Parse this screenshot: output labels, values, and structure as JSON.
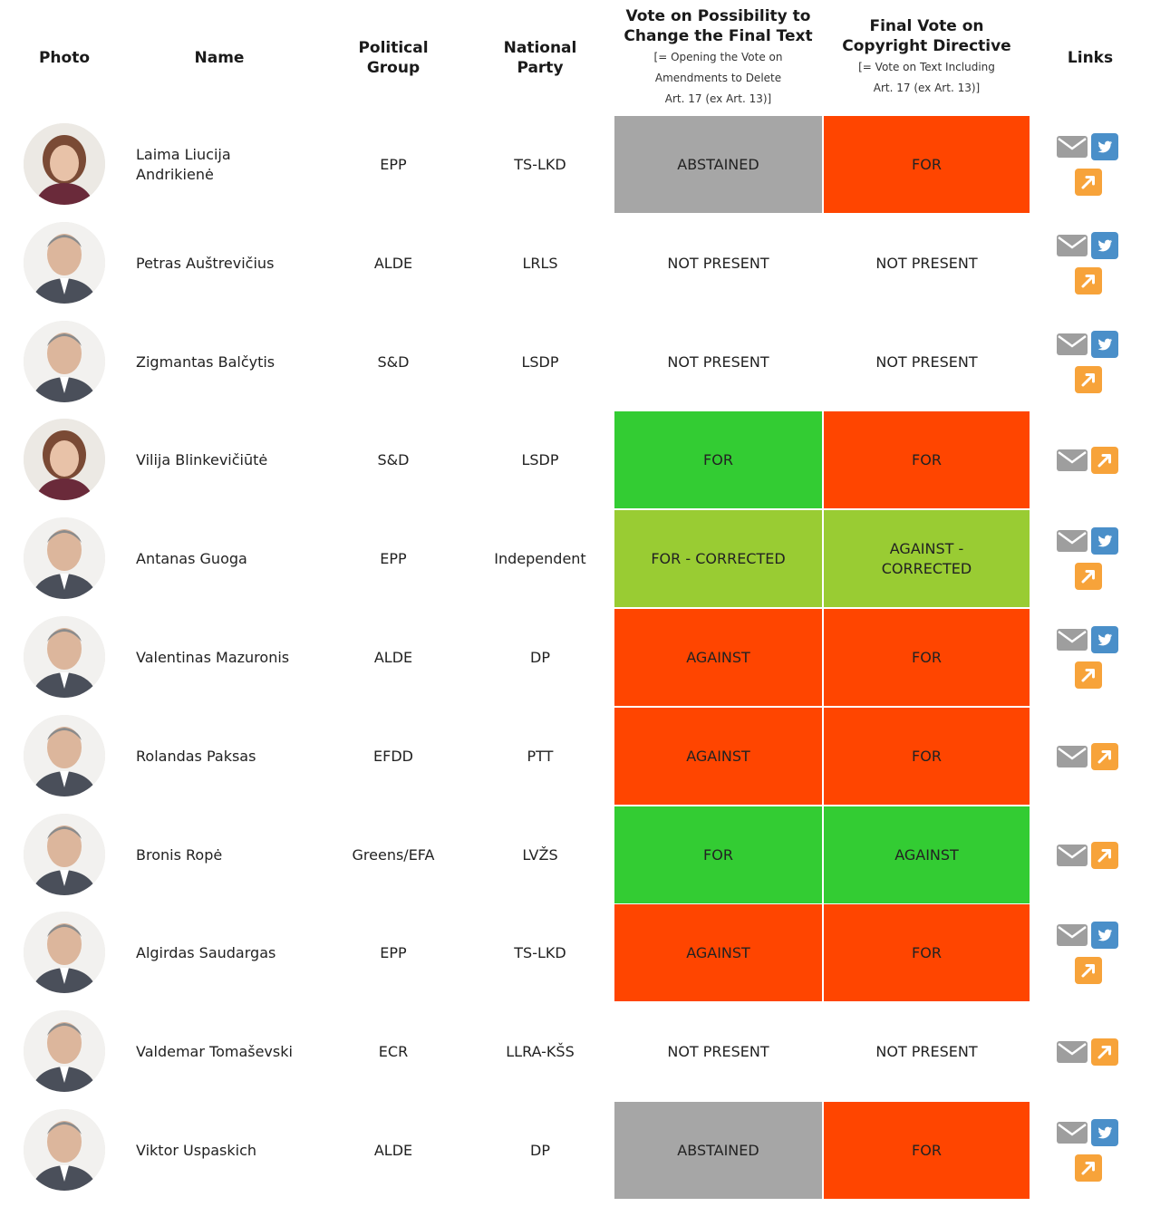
{
  "header": {
    "photo": "Photo",
    "name": "Name",
    "group_line1": "Political",
    "group_line2": "Group",
    "party_line1": "National",
    "party_line2": "Party",
    "vote1_line1": "Vote on Possibility to",
    "vote1_line2": "Change the Final Text",
    "vote1_sub1": "[= Opening the Vote on",
    "vote1_sub2": "Amendments to Delete",
    "vote1_sub3": "Art. 17 (ex Art. 13)]",
    "vote2_line1": "Final Vote on",
    "vote2_line2": "Copyright Directive",
    "vote2_sub1": "[= Vote on Text Including",
    "vote2_sub2": "Art. 17 (ex Art. 13)]",
    "links": "Links"
  },
  "colors": {
    "abstained": "#a6a6a6",
    "for_green": "#33cc33",
    "for_corrected": "#99cc33",
    "against_red": "#ff4500",
    "not_present": "#ffffff",
    "mail_icon": "#9e9e9e",
    "twitter_icon": "#4a8fc9",
    "link_icon": "#f7a33a"
  },
  "rows": [
    {
      "name": "Laima Liucija Andrikienė",
      "name_l1": "Laima Liucija",
      "name_l2": "Andrikienė",
      "group": "EPP",
      "party": "TS-LKD",
      "vote1": "ABSTAINED",
      "vote1_l1": "ABSTAINED",
      "vote1_l2": "",
      "vote1_color": "#a6a6a6",
      "vote2": "FOR",
      "vote2_l1": "FOR",
      "vote2_l2": "",
      "vote2_color": "#ff4500",
      "twitter": true,
      "photo_icon": "portrait-woman"
    },
    {
      "name": "Petras Auštrevičius",
      "name_l1": "Petras Auštrevičius",
      "name_l2": "",
      "group": "ALDE",
      "party": "LRLS",
      "vote1_l1": "NOT PRESENT",
      "vote1_l2": "",
      "vote1_color": "#ffffff",
      "vote2_l1": "NOT PRESENT",
      "vote2_l2": "",
      "vote2_color": "#ffffff",
      "twitter": true,
      "photo_icon": "portrait-man"
    },
    {
      "name_l1": "Zigmantas Balčytis",
      "name_l2": "",
      "group": "S&D",
      "party": "LSDP",
      "vote1_l1": "NOT PRESENT",
      "vote1_l2": "",
      "vote1_color": "#ffffff",
      "vote2_l1": "NOT PRESENT",
      "vote2_l2": "",
      "vote2_color": "#ffffff",
      "twitter": true,
      "photo_icon": "portrait-man"
    },
    {
      "name_l1": "Vilija Blinkevičiūtė",
      "name_l2": "",
      "group": "S&D",
      "party": "LSDP",
      "vote1_l1": "FOR",
      "vote1_l2": "",
      "vote1_color": "#33cc33",
      "vote2_l1": "FOR",
      "vote2_l2": "",
      "vote2_color": "#ff4500",
      "twitter": false,
      "photo_icon": "portrait-woman"
    },
    {
      "name_l1": "Antanas Guoga",
      "name_l2": "",
      "group": "EPP",
      "party": "Independent",
      "vote1_l1": "FOR - CORRECTED",
      "vote1_l2": "",
      "vote1_color": "#99cc33",
      "vote2_l1": "AGAINST -",
      "vote2_l2": "CORRECTED",
      "vote2_color": "#99cc33",
      "twitter": true,
      "photo_icon": "portrait-man"
    },
    {
      "name_l1": "Valentinas Mazuronis",
      "name_l2": "",
      "group": "ALDE",
      "party": "DP",
      "vote1_l1": "AGAINST",
      "vote1_l2": "",
      "vote1_color": "#ff4500",
      "vote2_l1": "FOR",
      "vote2_l2": "",
      "vote2_color": "#ff4500",
      "twitter": true,
      "photo_icon": "portrait-man"
    },
    {
      "name_l1": "Rolandas Paksas",
      "name_l2": "",
      "group": "EFDD",
      "party": "PTT",
      "vote1_l1": "AGAINST",
      "vote1_l2": "",
      "vote1_color": "#ff4500",
      "vote2_l1": "FOR",
      "vote2_l2": "",
      "vote2_color": "#ff4500",
      "twitter": false,
      "photo_icon": "portrait-man"
    },
    {
      "name_l1": "Bronis Ropė",
      "name_l2": "",
      "group": "Greens/EFA",
      "party": "LVŽS",
      "vote1_l1": "FOR",
      "vote1_l2": "",
      "vote1_color": "#33cc33",
      "vote2_l1": "AGAINST",
      "vote2_l2": "",
      "vote2_color": "#33cc33",
      "twitter": false,
      "photo_icon": "portrait-man"
    },
    {
      "name_l1": "Algirdas Saudargas",
      "name_l2": "",
      "group": "EPP",
      "party": "TS-LKD",
      "vote1_l1": "AGAINST",
      "vote1_l2": "",
      "vote1_color": "#ff4500",
      "vote2_l1": "FOR",
      "vote2_l2": "",
      "vote2_color": "#ff4500",
      "twitter": true,
      "photo_icon": "portrait-man"
    },
    {
      "name_l1": "Valdemar Tomaševski",
      "name_l2": "",
      "group": "ECR",
      "party": "LLRA-KŠS",
      "vote1_l1": "NOT PRESENT",
      "vote1_l2": "",
      "vote1_color": "#ffffff",
      "vote2_l1": "NOT PRESENT",
      "vote2_l2": "",
      "vote2_color": "#ffffff",
      "twitter": false,
      "photo_icon": "portrait-man"
    },
    {
      "name_l1": "Viktor Uspaskich",
      "name_l2": "",
      "group": "ALDE",
      "party": "DP",
      "vote1_l1": "ABSTAINED",
      "vote1_l2": "",
      "vote1_color": "#a6a6a6",
      "vote2_l1": "FOR",
      "vote2_l2": "",
      "vote2_color": "#ff4500",
      "twitter": true,
      "photo_icon": "portrait-man"
    }
  ]
}
